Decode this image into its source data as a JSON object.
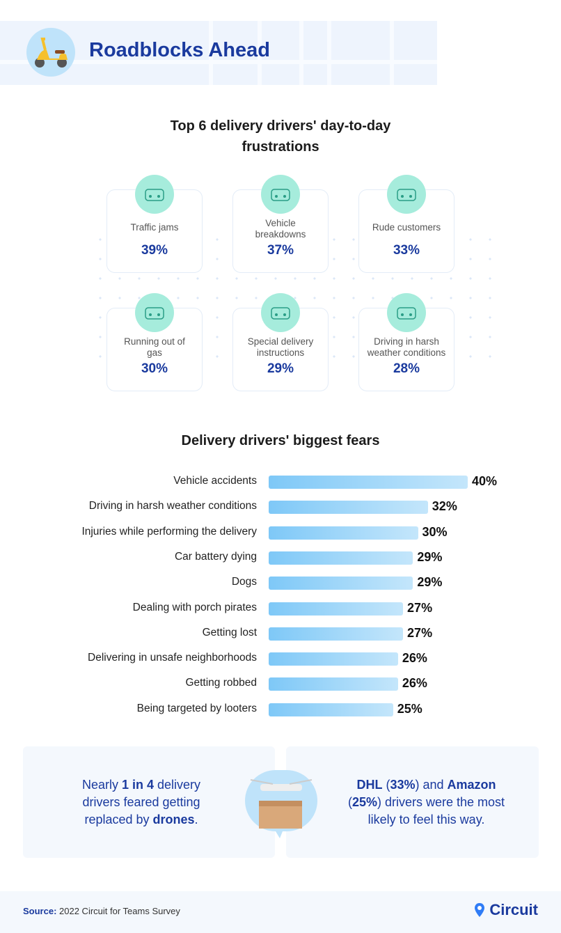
{
  "header": {
    "title": "Roadblocks Ahead"
  },
  "frustrations": {
    "title_line1": "Top 6 delivery drivers' day-to-day",
    "title_line2": "frustrations",
    "items": [
      {
        "label": "Traffic jams",
        "value": "39%",
        "icon": "cars-icon"
      },
      {
        "label": "Vehicle breakdowns",
        "value": "37%",
        "icon": "wrench-scooter-icon"
      },
      {
        "label": "Rude customers",
        "value": "33%",
        "icon": "speech-bubble-icon"
      },
      {
        "label": "Running out of gas",
        "value": "30%",
        "icon": "gas-pump-icon"
      },
      {
        "label": "Special delivery instructions",
        "value": "29%",
        "icon": "route-pin-icon"
      },
      {
        "label": "Driving in harsh weather conditions",
        "value": "28%",
        "icon": "weather-scooter-icon"
      }
    ]
  },
  "chart_data": {
    "type": "bar",
    "orientation": "horizontal",
    "title": "Delivery drivers' biggest fears",
    "categories": [
      "Vehicle accidents",
      "Driving in harsh weather conditions",
      "Injuries while performing the delivery",
      "Car battery dying",
      "Dogs",
      "Dealing with porch pirates",
      "Getting lost",
      "Delivering in unsafe neighborhoods",
      "Getting robbed",
      "Being targeted by looters"
    ],
    "values": [
      40,
      32,
      30,
      29,
      29,
      27,
      27,
      26,
      26,
      25
    ],
    "labels": [
      "40%",
      "32%",
      "30%",
      "29%",
      "29%",
      "27%",
      "27%",
      "26%",
      "26%",
      "25%"
    ],
    "unit": "%"
  },
  "drones": {
    "left": {
      "t1": "Nearly ",
      "b1": "1 in 4",
      "t2": " delivery drivers feared getting replaced by ",
      "b2": "drones",
      "t3": "."
    },
    "right": {
      "b1": "DHL",
      "t1": " (",
      "b2": "33%",
      "t2": ") and ",
      "b3": "Amazon",
      "t3": " (",
      "b4": "25%",
      "t4": ") drivers were the most likely to feel this way."
    }
  },
  "footer": {
    "source_label": "Source:",
    "source_text": " 2022 Circuit for Teams Survey",
    "brand": "Circuit"
  },
  "colors": {
    "brand": "#1a3a9e",
    "bar": "#7ec8f7",
    "icon_bg": "#a6ecdc"
  }
}
